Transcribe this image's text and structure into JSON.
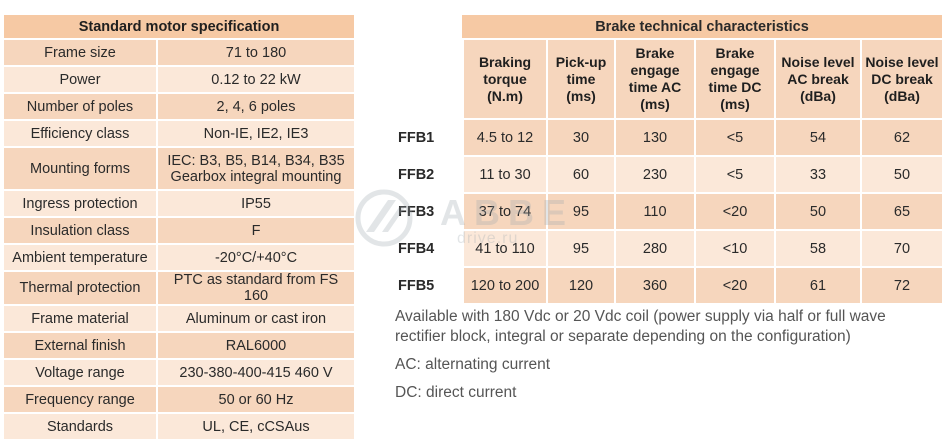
{
  "motor_spec": {
    "title": "Standard motor specification",
    "rows": [
      {
        "label": "Frame size",
        "value": "71 to 180"
      },
      {
        "label": "Power",
        "value": "0.12 to 22 kW"
      },
      {
        "label": "Number of poles",
        "value": "2, 4, 6 poles"
      },
      {
        "label": "Efficiency class",
        "value": "Non-IE, IE2, IE3"
      },
      {
        "label": "Mounting forms",
        "value": "IEC: B3, B5, B14, B34, B35",
        "value2": "Gearbox integral mounting"
      },
      {
        "label": "Ingress protection",
        "value": "IP55"
      },
      {
        "label": "Insulation class",
        "value": "F"
      },
      {
        "label": "Ambient temperature",
        "value": "-20°C/+40°C"
      },
      {
        "label": "Thermal protection",
        "value": "PTC as standard from FS 160"
      },
      {
        "label": "Frame material",
        "value": "Aluminum or cast iron"
      },
      {
        "label": "External finish",
        "value": "RAL6000"
      },
      {
        "label": "Voltage range",
        "value": "230-380-400-415 460 V"
      },
      {
        "label": "Frequency range",
        "value": "50 or 60 Hz"
      },
      {
        "label": "Standards",
        "value": "UL, CE, cCSAus"
      }
    ]
  },
  "brake": {
    "title": "Brake technical characteristics",
    "columns": [
      [
        "Braking",
        "torque",
        "(N.m)"
      ],
      [
        "Pick-up",
        "time",
        "(ms)"
      ],
      [
        "Brake",
        "engage",
        "time AC",
        "(ms)"
      ],
      [
        "Brake",
        "engage",
        "time DC",
        "(ms)"
      ],
      [
        "Noise level",
        "AC break",
        "(dBa)"
      ],
      [
        "Noise level",
        "DC break",
        "(dBa)"
      ]
    ],
    "rows": [
      {
        "model": "FFB1",
        "values": [
          "4.5 to 12",
          "30",
          "130",
          "<5",
          "54",
          "62"
        ]
      },
      {
        "model": "FFB2",
        "values": [
          "11 to 30",
          "60",
          "230",
          "<5",
          "33",
          "50"
        ]
      },
      {
        "model": "FFB3",
        "values": [
          "37 to 74",
          "95",
          "110",
          "<20",
          "50",
          "65"
        ]
      },
      {
        "model": "FFB4",
        "values": [
          "41 to 110",
          "95",
          "280",
          "<10",
          "58",
          "70"
        ]
      },
      {
        "model": "FFB5",
        "values": [
          "120 to 200",
          "120",
          "360",
          "<20",
          "61",
          "72"
        ]
      }
    ]
  },
  "notes": {
    "availability": "Available with 180 Vdc or 20 Vdc coil (power supply via half or full wave rectifier block, integral or separate depending on the configuration)",
    "ac": "AC: alternating current",
    "dc": "DC: direct current"
  },
  "watermark": {
    "brand": "АВВЕ",
    "site": "drive.ru"
  },
  "colors": {
    "header": "#f6c9a4",
    "row_dark": "#f6d6bd",
    "row_light": "#fbe8d9"
  }
}
